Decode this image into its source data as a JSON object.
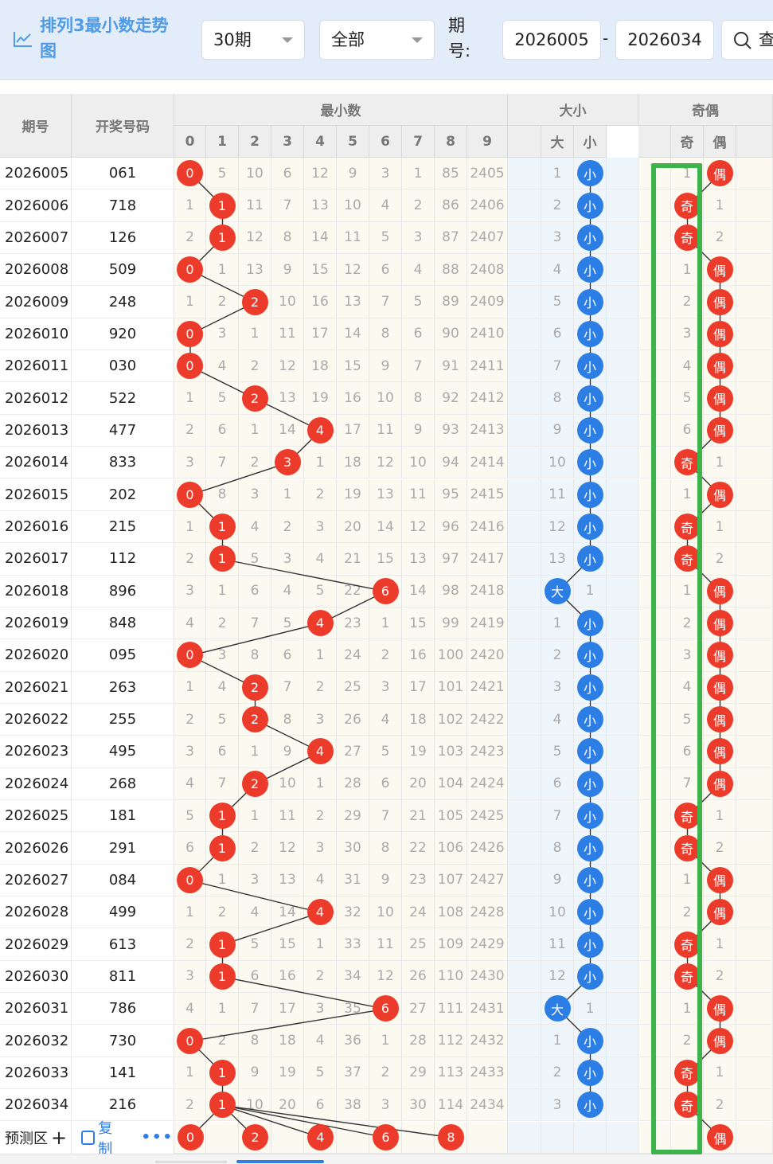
{
  "toolbar": {
    "title": "排列3最小数走势图",
    "period_select": "30期",
    "filter_select": "全部",
    "period_label": "期号:",
    "start_period": "2026005",
    "end_period": "2026034",
    "dash": "-",
    "search_label": "查"
  },
  "headers": {
    "period": "期号",
    "draw": "开奖号码",
    "min_group": "最小数",
    "size_group": "大小",
    "parity_group": "奇偶",
    "digits": [
      "0",
      "1",
      "2",
      "3",
      "4",
      "5",
      "6",
      "7",
      "8",
      "9"
    ],
    "size_cols": [
      "大",
      "小"
    ],
    "parity_cols": [
      "奇",
      "偶"
    ]
  },
  "labels": {
    "big": "大",
    "small": "小",
    "odd": "奇",
    "even": "偶"
  },
  "rows": [
    {
      "period": "2026005",
      "draw": "061",
      "min": 0,
      "miss": [
        "0",
        "5",
        "10",
        "6",
        "12",
        "9",
        "3",
        "1",
        "85",
        "2405"
      ],
      "size": "small",
      "size_miss": "1",
      "parity": "even",
      "parity_miss": "1"
    },
    {
      "period": "2026006",
      "draw": "718",
      "min": 1,
      "miss": [
        "1",
        "1",
        "11",
        "7",
        "13",
        "10",
        "4",
        "2",
        "86",
        "2406"
      ],
      "size": "small",
      "size_miss": "2",
      "parity": "odd",
      "parity_miss": "1"
    },
    {
      "period": "2026007",
      "draw": "126",
      "min": 1,
      "miss": [
        "2",
        "1",
        "12",
        "8",
        "14",
        "11",
        "5",
        "3",
        "87",
        "2407"
      ],
      "size": "small",
      "size_miss": "3",
      "parity": "odd",
      "parity_miss": "2"
    },
    {
      "period": "2026008",
      "draw": "509",
      "min": 0,
      "miss": [
        "0",
        "1",
        "13",
        "9",
        "15",
        "12",
        "6",
        "4",
        "88",
        "2408"
      ],
      "size": "small",
      "size_miss": "4",
      "parity": "even",
      "parity_miss": "1"
    },
    {
      "period": "2026009",
      "draw": "248",
      "min": 2,
      "miss": [
        "1",
        "2",
        "2",
        "10",
        "16",
        "13",
        "7",
        "5",
        "89",
        "2409"
      ],
      "size": "small",
      "size_miss": "5",
      "parity": "even",
      "parity_miss": "2"
    },
    {
      "period": "2026010",
      "draw": "920",
      "min": 0,
      "miss": [
        "0",
        "3",
        "1",
        "11",
        "17",
        "14",
        "8",
        "6",
        "90",
        "2410"
      ],
      "size": "small",
      "size_miss": "6",
      "parity": "even",
      "parity_miss": "3"
    },
    {
      "period": "2026011",
      "draw": "030",
      "min": 0,
      "miss": [
        "0",
        "4",
        "2",
        "12",
        "18",
        "15",
        "9",
        "7",
        "91",
        "2411"
      ],
      "size": "small",
      "size_miss": "7",
      "parity": "even",
      "parity_miss": "4"
    },
    {
      "period": "2026012",
      "draw": "522",
      "min": 2,
      "miss": [
        "1",
        "5",
        "2",
        "13",
        "19",
        "16",
        "10",
        "8",
        "92",
        "2412"
      ],
      "size": "small",
      "size_miss": "8",
      "parity": "even",
      "parity_miss": "5"
    },
    {
      "period": "2026013",
      "draw": "477",
      "min": 4,
      "miss": [
        "2",
        "6",
        "1",
        "14",
        "4",
        "17",
        "11",
        "9",
        "93",
        "2413"
      ],
      "size": "small",
      "size_miss": "9",
      "parity": "even",
      "parity_miss": "6"
    },
    {
      "period": "2026014",
      "draw": "833",
      "min": 3,
      "miss": [
        "3",
        "7",
        "2",
        "3",
        "1",
        "18",
        "12",
        "10",
        "94",
        "2414"
      ],
      "size": "small",
      "size_miss": "10",
      "parity": "odd",
      "parity_miss": "1"
    },
    {
      "period": "2026015",
      "draw": "202",
      "min": 0,
      "miss": [
        "0",
        "8",
        "3",
        "1",
        "2",
        "19",
        "13",
        "11",
        "95",
        "2415"
      ],
      "size": "small",
      "size_miss": "11",
      "parity": "even",
      "parity_miss": "1"
    },
    {
      "period": "2026016",
      "draw": "215",
      "min": 1,
      "miss": [
        "1",
        "1",
        "4",
        "2",
        "3",
        "20",
        "14",
        "12",
        "96",
        "2416"
      ],
      "size": "small",
      "size_miss": "12",
      "parity": "odd",
      "parity_miss": "1"
    },
    {
      "period": "2026017",
      "draw": "112",
      "min": 1,
      "miss": [
        "2",
        "1",
        "5",
        "3",
        "4",
        "21",
        "15",
        "13",
        "97",
        "2417"
      ],
      "size": "small",
      "size_miss": "13",
      "parity": "odd",
      "parity_miss": "2"
    },
    {
      "period": "2026018",
      "draw": "896",
      "min": 6,
      "miss": [
        "3",
        "1",
        "6",
        "4",
        "5",
        "22",
        "6",
        "14",
        "98",
        "2418"
      ],
      "size": "big",
      "size_miss": "1",
      "parity": "even",
      "parity_miss": "1"
    },
    {
      "period": "2026019",
      "draw": "848",
      "min": 4,
      "miss": [
        "4",
        "2",
        "7",
        "5",
        "4",
        "23",
        "1",
        "15",
        "99",
        "2419"
      ],
      "size": "small",
      "size_miss": "1",
      "parity": "even",
      "parity_miss": "2"
    },
    {
      "period": "2026020",
      "draw": "095",
      "min": 0,
      "miss": [
        "0",
        "3",
        "8",
        "6",
        "1",
        "24",
        "2",
        "16",
        "100",
        "2420"
      ],
      "size": "small",
      "size_miss": "2",
      "parity": "even",
      "parity_miss": "3"
    },
    {
      "period": "2026021",
      "draw": "263",
      "min": 2,
      "miss": [
        "1",
        "4",
        "2",
        "7",
        "2",
        "25",
        "3",
        "17",
        "101",
        "2421"
      ],
      "size": "small",
      "size_miss": "3",
      "parity": "even",
      "parity_miss": "4"
    },
    {
      "period": "2026022",
      "draw": "255",
      "min": 2,
      "miss": [
        "2",
        "5",
        "2",
        "8",
        "3",
        "26",
        "4",
        "18",
        "102",
        "2422"
      ],
      "size": "small",
      "size_miss": "4",
      "parity": "even",
      "parity_miss": "5"
    },
    {
      "period": "2026023",
      "draw": "495",
      "min": 4,
      "miss": [
        "3",
        "6",
        "1",
        "9",
        "4",
        "27",
        "5",
        "19",
        "103",
        "2423"
      ],
      "size": "small",
      "size_miss": "5",
      "parity": "even",
      "parity_miss": "6"
    },
    {
      "period": "2026024",
      "draw": "268",
      "min": 2,
      "miss": [
        "4",
        "7",
        "2",
        "10",
        "1",
        "28",
        "6",
        "20",
        "104",
        "2424"
      ],
      "size": "small",
      "size_miss": "6",
      "parity": "even",
      "parity_miss": "7"
    },
    {
      "period": "2026025",
      "draw": "181",
      "min": 1,
      "miss": [
        "5",
        "1",
        "1",
        "11",
        "2",
        "29",
        "7",
        "21",
        "105",
        "2425"
      ],
      "size": "small",
      "size_miss": "7",
      "parity": "odd",
      "parity_miss": "1"
    },
    {
      "period": "2026026",
      "draw": "291",
      "min": 1,
      "miss": [
        "6",
        "1",
        "2",
        "12",
        "3",
        "30",
        "8",
        "22",
        "106",
        "2426"
      ],
      "size": "small",
      "size_miss": "8",
      "parity": "odd",
      "parity_miss": "2"
    },
    {
      "period": "2026027",
      "draw": "084",
      "min": 0,
      "miss": [
        "0",
        "1",
        "3",
        "13",
        "4",
        "31",
        "9",
        "23",
        "107",
        "2427"
      ],
      "size": "small",
      "size_miss": "9",
      "parity": "even",
      "parity_miss": "1"
    },
    {
      "period": "2026028",
      "draw": "499",
      "min": 4,
      "miss": [
        "1",
        "2",
        "4",
        "14",
        "4",
        "32",
        "10",
        "24",
        "108",
        "2428"
      ],
      "size": "small",
      "size_miss": "10",
      "parity": "even",
      "parity_miss": "2"
    },
    {
      "period": "2026029",
      "draw": "613",
      "min": 1,
      "miss": [
        "2",
        "1",
        "5",
        "15",
        "1",
        "33",
        "11",
        "25",
        "109",
        "2429"
      ],
      "size": "small",
      "size_miss": "11",
      "parity": "odd",
      "parity_miss": "1"
    },
    {
      "period": "2026030",
      "draw": "811",
      "min": 1,
      "miss": [
        "3",
        "1",
        "6",
        "16",
        "2",
        "34",
        "12",
        "26",
        "110",
        "2430"
      ],
      "size": "small",
      "size_miss": "12",
      "parity": "odd",
      "parity_miss": "2"
    },
    {
      "period": "2026031",
      "draw": "786",
      "min": 6,
      "miss": [
        "4",
        "1",
        "7",
        "17",
        "3",
        "35",
        "6",
        "27",
        "111",
        "2431"
      ],
      "size": "big",
      "size_miss": "1",
      "parity": "even",
      "parity_miss": "1"
    },
    {
      "period": "2026032",
      "draw": "730",
      "min": 0,
      "miss": [
        "0",
        "2",
        "8",
        "18",
        "4",
        "36",
        "1",
        "28",
        "112",
        "2432"
      ],
      "size": "small",
      "size_miss": "1",
      "parity": "even",
      "parity_miss": "2"
    },
    {
      "period": "2026033",
      "draw": "141",
      "min": 1,
      "miss": [
        "1",
        "1",
        "9",
        "19",
        "5",
        "37",
        "2",
        "29",
        "113",
        "2433"
      ],
      "size": "small",
      "size_miss": "2",
      "parity": "odd",
      "parity_miss": "1"
    },
    {
      "period": "2026034",
      "draw": "216",
      "min": 1,
      "miss": [
        "2",
        "1",
        "10",
        "20",
        "6",
        "38",
        "3",
        "30",
        "114",
        "2434"
      ],
      "size": "small",
      "size_miss": "3",
      "parity": "odd",
      "parity_miss": "2"
    }
  ],
  "prediction": {
    "label": "预测区",
    "plus": "+",
    "copy_label": "复制",
    "more": "•••",
    "balls": [
      "0",
      "2",
      "4",
      "6",
      "8"
    ],
    "parity_ball": "偶"
  },
  "colors": {
    "accent_red": "#ec3b2b",
    "accent_blue": "#2c7ee5",
    "highlight_green": "#3cb44b",
    "title_blue": "#4f9be8"
  }
}
